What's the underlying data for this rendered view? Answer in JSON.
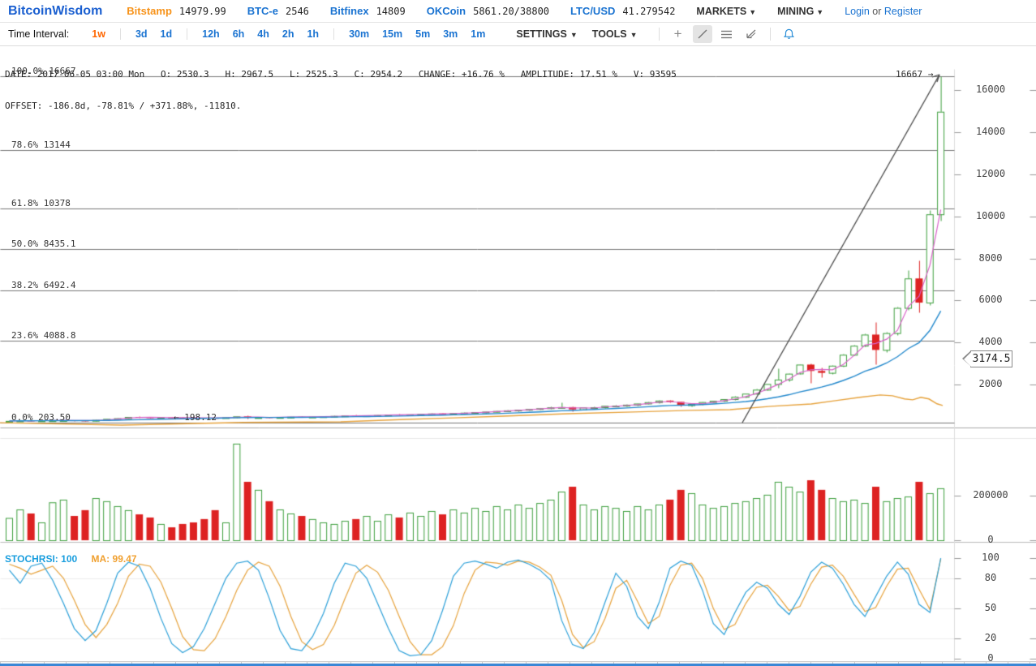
{
  "header": {
    "logo": "BitcoinWisdom",
    "tickers": [
      {
        "name": "Bitstamp",
        "value": "14979.99"
      },
      {
        "name": "BTC-e",
        "value": "2546"
      },
      {
        "name": "Bitfinex",
        "value": "14809"
      },
      {
        "name": "OKCoin",
        "value": "5861.20/38800"
      },
      {
        "name": "LTC/USD",
        "value": "41.279542"
      }
    ],
    "menus": {
      "markets": "MARKETS",
      "mining": "MINING"
    },
    "auth": {
      "login": "Login",
      "or": "or",
      "register": "Register"
    }
  },
  "toolbar": {
    "time_interval_label": "Time Interval:",
    "interval_groups": [
      [
        "1w"
      ],
      [
        "3d",
        "1d"
      ],
      [
        "12h",
        "6h",
        "4h",
        "2h",
        "1h"
      ],
      [
        "30m",
        "15m",
        "5m",
        "3m",
        "1m"
      ]
    ],
    "active_interval": "1w",
    "settings_label": "SETTINGS",
    "tools_label": "TOOLS"
  },
  "info": {
    "line1": "DATE: 2017-06-05 03:00 Mon   O: 2530.3   H: 2967.5   L: 2525.3   C: 2954.2   CHANGE: +16.76 %   AMPLITUDE: 17.51 %   V: 93595",
    "line2": "OFFSET: -186.8d, -78.81% / +371.88%, -11810."
  },
  "chart_data": {
    "type": "candlestick",
    "interval": "1w",
    "price_axis": {
      "ticks": [
        16000,
        14000,
        12000,
        10000,
        8000,
        6000,
        4000,
        2000
      ],
      "price_tag": "3174.5"
    },
    "volume_axis": {
      "ticks": [
        200000,
        0
      ]
    },
    "fib_levels": [
      {
        "label": "100.0%",
        "price": "16667",
        "value": 16667
      },
      {
        "label": "78.6%",
        "price": "13144",
        "value": 13144
      },
      {
        "label": "61.8%",
        "price": "10378",
        "value": 10378
      },
      {
        "label": "50.0%",
        "price": "8435.1",
        "value": 8435.1
      },
      {
        "label": "38.2%",
        "price": "6492.4",
        "value": 6492.4
      },
      {
        "label": "23.6%",
        "price": "4088.8",
        "value": 4088.8
      },
      {
        "label": "0.0%",
        "price": "203.50",
        "value": 203.5
      }
    ],
    "trend_line": {
      "start_label": "← 198.12",
      "end_label": "16667 →"
    },
    "candles": [
      [
        265,
        285,
        255,
        275
      ],
      [
        275,
        295,
        262,
        290
      ],
      [
        290,
        302,
        272,
        281
      ],
      [
        281,
        300,
        274,
        296
      ],
      [
        296,
        312,
        286,
        301
      ],
      [
        301,
        316,
        291,
        306
      ],
      [
        306,
        311,
        281,
        291
      ],
      [
        291,
        301,
        271,
        281
      ],
      [
        281,
        331,
        276,
        322
      ],
      [
        322,
        382,
        312,
        371
      ],
      [
        371,
        422,
        351,
        401
      ],
      [
        401,
        481,
        391,
        461
      ],
      [
        461,
        501,
        431,
        446
      ],
      [
        446,
        461,
        421,
        431
      ],
      [
        431,
        451,
        416,
        441
      ],
      [
        441,
        456,
        421,
        431
      ],
      [
        431,
        446,
        411,
        426
      ],
      [
        426,
        441,
        406,
        421
      ],
      [
        421,
        436,
        401,
        416
      ],
      [
        416,
        431,
        396,
        411
      ],
      [
        411,
        451,
        406,
        446
      ],
      [
        446,
        501,
        431,
        491
      ],
      [
        491,
        521,
        401,
        431
      ],
      [
        431,
        461,
        416,
        451
      ],
      [
        451,
        471,
        431,
        446
      ],
      [
        446,
        466,
        426,
        456
      ],
      [
        456,
        481,
        441,
        471
      ],
      [
        471,
        491,
        451,
        466
      ],
      [
        466,
        486,
        446,
        476
      ],
      [
        476,
        501,
        461,
        491
      ],
      [
        491,
        521,
        476,
        511
      ],
      [
        511,
        541,
        491,
        531
      ],
      [
        531,
        561,
        506,
        521
      ],
      [
        521,
        546,
        501,
        536
      ],
      [
        536,
        566,
        516,
        551
      ],
      [
        551,
        581,
        531,
        571
      ],
      [
        571,
        601,
        546,
        561
      ],
      [
        561,
        591,
        541,
        581
      ],
      [
        581,
        621,
        566,
        606
      ],
      [
        606,
        641,
        586,
        626
      ],
      [
        626,
        661,
        601,
        616
      ],
      [
        616,
        651,
        596,
        641
      ],
      [
        641,
        681,
        621,
        666
      ],
      [
        666,
        701,
        641,
        691
      ],
      [
        691,
        731,
        671,
        716
      ],
      [
        716,
        761,
        696,
        746
      ],
      [
        746,
        791,
        721,
        776
      ],
      [
        776,
        821,
        751,
        806
      ],
      [
        806,
        861,
        781,
        841
      ],
      [
        841,
        901,
        816,
        876
      ],
      [
        876,
        951,
        851,
        921
      ],
      [
        921,
        1150,
        891,
        931
      ],
      [
        931,
        961,
        751,
        821
      ],
      [
        821,
        931,
        801,
        916
      ],
      [
        916,
        961,
        881,
        926
      ],
      [
        926,
        1011,
        901,
        991
      ],
      [
        991,
        1041,
        951,
        1001
      ],
      [
        1001,
        1061,
        961,
        1046
      ],
      [
        1046,
        1121,
        1021,
        1101
      ],
      [
        1101,
        1181,
        1061,
        1166
      ],
      [
        1166,
        1261,
        1131,
        1241
      ],
      [
        1241,
        1291,
        1151,
        1181
      ],
      [
        1181,
        1211,
        951,
        1021
      ],
      [
        1021,
        1101,
        981,
        1081
      ],
      [
        1081,
        1191,
        1051,
        1171
      ],
      [
        1171,
        1251,
        1141,
        1231
      ],
      [
        1231,
        1331,
        1201,
        1311
      ],
      [
        1311,
        1451,
        1281,
        1421
      ],
      [
        1421,
        1601,
        1391,
        1571
      ],
      [
        1571,
        1801,
        1541,
        1761
      ],
      [
        1761,
        2061,
        1721,
        2031
      ],
      [
        2031,
        2761,
        1851,
        2241
      ],
      [
        2241,
        2551,
        2151,
        2521
      ],
      [
        2530.3,
        2967.5,
        2525.3,
        2954.2
      ],
      [
        2954,
        3001,
        2081,
        2651
      ],
      [
        2651,
        2801,
        2351,
        2561
      ],
      [
        2561,
        2941,
        2521,
        2901
      ],
      [
        2901,
        3481,
        2851,
        3421
      ],
      [
        3421,
        3901,
        3381,
        3851
      ],
      [
        3851,
        4451,
        3801,
        4381
      ],
      [
        4381,
        4981,
        2981,
        3651
      ],
      [
        3651,
        4501,
        3551,
        4451
      ],
      [
        4451,
        5701,
        4351,
        5651
      ],
      [
        5651,
        7451,
        5551,
        7051
      ],
      [
        7051,
        7901,
        5451,
        5901
      ],
      [
        5901,
        10301,
        5801,
        10101
      ],
      [
        10101,
        16667,
        9801,
        14980
      ]
    ],
    "volumes": [
      100000,
      138000,
      120000,
      80000,
      170000,
      182000,
      109000,
      135000,
      189000,
      175000,
      153000,
      135000,
      116000,
      102000,
      73000,
      58000,
      73000,
      80000,
      95000,
      135000,
      80000,
      433000,
      262000,
      226000,
      175000,
      138000,
      120000,
      109000,
      95000,
      80000,
      73000,
      87000,
      95000,
      109000,
      87000,
      116000,
      102000,
      124000,
      109000,
      131000,
      116000,
      138000,
      124000,
      145000,
      131000,
      153000,
      138000,
      160000,
      145000,
      167000,
      182000,
      218000,
      240000,
      160000,
      138000,
      153000,
      145000,
      131000,
      153000,
      138000,
      160000,
      182000,
      226000,
      211000,
      160000,
      145000,
      153000,
      167000,
      175000,
      189000,
      204000,
      262000,
      240000,
      218000,
      269000,
      226000,
      189000,
      175000,
      182000,
      167000,
      240000,
      175000,
      189000,
      196000,
      262000,
      211000,
      233000
    ],
    "stochrsi": {
      "label": "STOCHRSI:",
      "k_value": "100",
      "ma_label": "MA:",
      "ma_value": "99.47",
      "axis_ticks": [
        100,
        80,
        50,
        20,
        0
      ],
      "k": [
        88,
        75,
        92,
        95,
        78,
        55,
        30,
        18,
        28,
        55,
        85,
        96,
        92,
        70,
        40,
        15,
        6,
        12,
        30,
        55,
        80,
        95,
        97,
        88,
        60,
        28,
        10,
        8,
        22,
        45,
        75,
        95,
        92,
        80,
        55,
        30,
        8,
        3,
        4,
        18,
        48,
        82,
        95,
        97,
        94,
        90,
        96,
        98,
        94,
        88,
        78,
        38,
        14,
        10,
        26,
        56,
        85,
        72,
        42,
        30,
        56,
        90,
        97,
        93,
        68,
        35,
        24,
        46,
        66,
        76,
        70,
        54,
        44,
        62,
        86,
        96,
        90,
        74,
        54,
        42,
        62,
        82,
        96,
        84,
        54,
        46,
        100
      ],
      "ma": [
        94,
        90,
        84,
        88,
        92,
        80,
        58,
        34,
        21,
        34,
        55,
        82,
        94,
        92,
        76,
        50,
        22,
        9,
        8,
        20,
        42,
        68,
        88,
        96,
        92,
        72,
        42,
        17,
        9,
        14,
        33,
        60,
        85,
        93,
        86,
        68,
        42,
        17,
        4,
        4,
        12,
        33,
        65,
        88,
        96,
        95,
        93,
        97,
        96,
        91,
        83,
        58,
        24,
        11,
        17,
        40,
        70,
        78,
        57,
        35,
        42,
        73,
        93,
        95,
        80,
        50,
        29,
        34,
        55,
        71,
        73,
        62,
        48,
        52,
        74,
        91,
        93,
        82,
        64,
        47,
        51,
        72,
        89,
        90,
        69,
        49,
        99
      ]
    },
    "ma_overlay_orange": [
      [
        0,
        190
      ],
      [
        150,
        80
      ],
      [
        300,
        200
      ],
      [
        420,
        230
      ],
      [
        500,
        350
      ],
      [
        560,
        420
      ],
      [
        620,
        500
      ],
      [
        700,
        620
      ],
      [
        780,
        700
      ],
      [
        850,
        775
      ],
      [
        900,
        810
      ],
      [
        950,
        970
      ],
      [
        1000,
        1080
      ],
      [
        1030,
        1240
      ],
      [
        1060,
        1400
      ],
      [
        1085,
        1510
      ],
      [
        1100,
        1470
      ],
      [
        1115,
        1320
      ],
      [
        1125,
        1280
      ],
      [
        1135,
        1400
      ],
      [
        1145,
        1320
      ],
      [
        1155,
        1090
      ],
      [
        1162,
        1010
      ]
    ],
    "colors": {
      "up": "#3c9e3c",
      "down": "#dd2222",
      "ma_short": "#d863c8",
      "ma_mid": "#2288cc",
      "ma_long": "#e6a23c",
      "trend_line": "#444444",
      "fib_line": "#777777",
      "stoch_k": "#2b9fd8",
      "stoch_ma": "#e6a23c"
    }
  }
}
